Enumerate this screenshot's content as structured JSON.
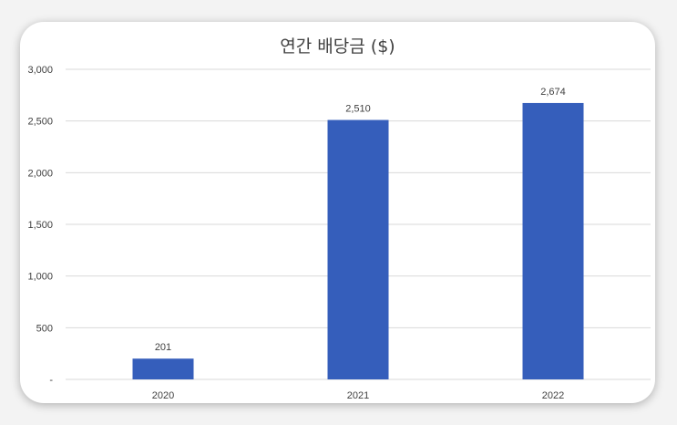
{
  "chart_data": {
    "type": "bar",
    "title": "연간 배당금 ($)",
    "categories": [
      "2020",
      "2021",
      "2022"
    ],
    "values": [
      201,
      2510,
      2674
    ],
    "data_labels": [
      "201",
      "2,510",
      "2,674"
    ],
    "ylim": [
      0,
      3000
    ],
    "yticks": [
      0,
      500,
      1000,
      1500,
      2000,
      2500,
      3000
    ],
    "ytick_labels": [
      "-",
      "500",
      "1,000",
      "1,500",
      "2,000",
      "2,500",
      "3,000"
    ],
    "xlabel": "",
    "ylabel": "",
    "grid": true,
    "legend": "none",
    "bar_color": "#355EBB",
    "grid_color": "#d9d9d9"
  }
}
